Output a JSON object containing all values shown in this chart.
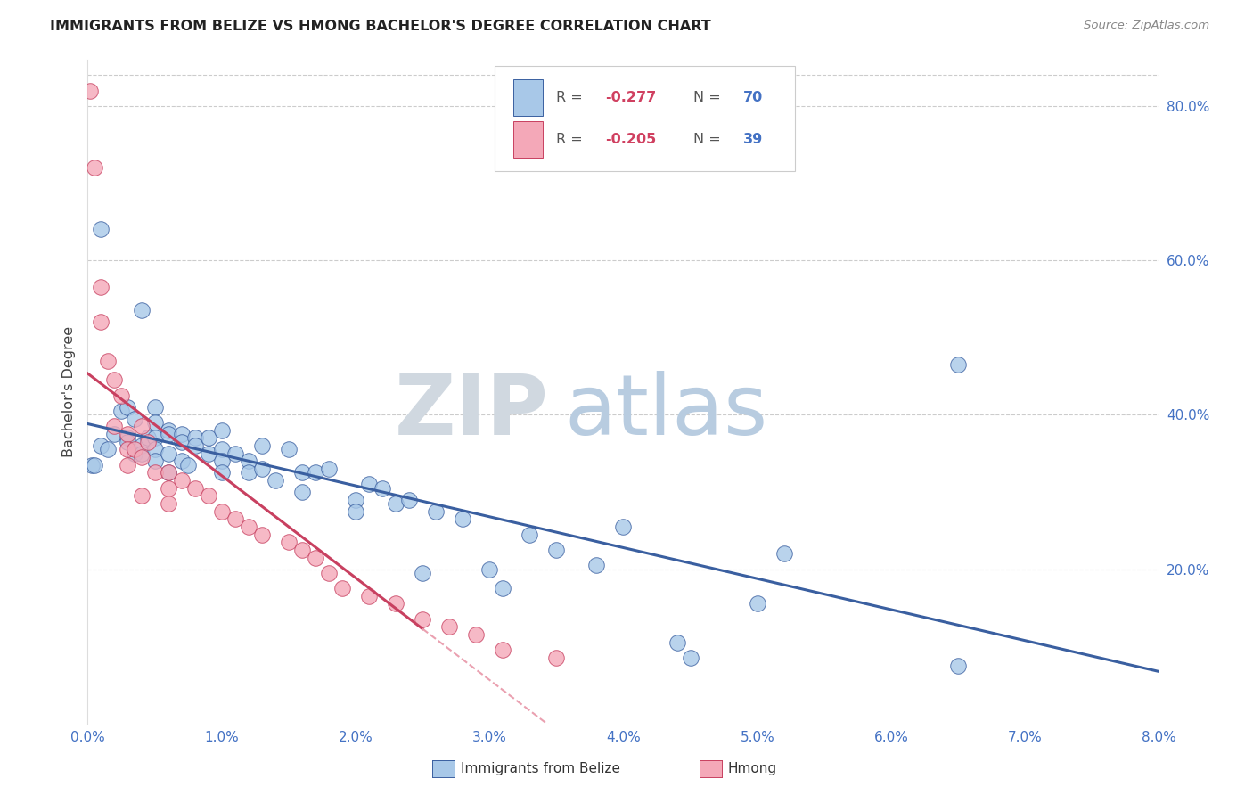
{
  "title": "IMMIGRANTS FROM BELIZE VS HMONG BACHELOR'S DEGREE CORRELATION CHART",
  "source": "Source: ZipAtlas.com",
  "ylabel": "Bachelor's Degree",
  "x_tick_labels": [
    "0.0%",
    "1.0%",
    "2.0%",
    "3.0%",
    "4.0%",
    "5.0%",
    "6.0%",
    "7.0%",
    "8.0%"
  ],
  "y_tick_labels_right": [
    "20.0%",
    "40.0%",
    "60.0%",
    "80.0%"
  ],
  "x_ticks": [
    0.0,
    0.01,
    0.02,
    0.03,
    0.04,
    0.05,
    0.06,
    0.07,
    0.08
  ],
  "y_ticks_right": [
    0.2,
    0.4,
    0.6,
    0.8
  ],
  "xlim": [
    0.0,
    0.08
  ],
  "ylim": [
    0.0,
    0.86
  ],
  "color_blue": "#A8C8E8",
  "color_pink": "#F4A8B8",
  "color_trendline_blue": "#3A5FA0",
  "color_trendline_pink": "#C84060",
  "color_trendline_pink_dashed": "#EAA0B0",
  "watermark_zip_color": "#D0D8E0",
  "watermark_atlas_color": "#B8CCE0",
  "belize_x": [
    0.0003,
    0.0005,
    0.001,
    0.001,
    0.0015,
    0.002,
    0.0025,
    0.003,
    0.003,
    0.003,
    0.0035,
    0.0035,
    0.004,
    0.004,
    0.004,
    0.0045,
    0.005,
    0.005,
    0.005,
    0.005,
    0.005,
    0.006,
    0.006,
    0.006,
    0.006,
    0.007,
    0.007,
    0.007,
    0.0075,
    0.008,
    0.008,
    0.009,
    0.009,
    0.01,
    0.01,
    0.01,
    0.01,
    0.011,
    0.012,
    0.012,
    0.013,
    0.013,
    0.014,
    0.015,
    0.016,
    0.016,
    0.017,
    0.018,
    0.02,
    0.02,
    0.021,
    0.022,
    0.023,
    0.024,
    0.025,
    0.026,
    0.028,
    0.03,
    0.031,
    0.033,
    0.035,
    0.038,
    0.04,
    0.044,
    0.045,
    0.05,
    0.052,
    0.065,
    0.065
  ],
  "belize_y": [
    0.335,
    0.335,
    0.64,
    0.36,
    0.355,
    0.375,
    0.405,
    0.41,
    0.37,
    0.365,
    0.395,
    0.35,
    0.36,
    0.35,
    0.535,
    0.37,
    0.41,
    0.39,
    0.37,
    0.355,
    0.34,
    0.38,
    0.375,
    0.35,
    0.325,
    0.375,
    0.365,
    0.34,
    0.335,
    0.37,
    0.36,
    0.37,
    0.35,
    0.38,
    0.355,
    0.34,
    0.325,
    0.35,
    0.34,
    0.325,
    0.36,
    0.33,
    0.315,
    0.355,
    0.325,
    0.3,
    0.325,
    0.33,
    0.29,
    0.275,
    0.31,
    0.305,
    0.285,
    0.29,
    0.195,
    0.275,
    0.265,
    0.2,
    0.175,
    0.245,
    0.225,
    0.205,
    0.255,
    0.105,
    0.085,
    0.155,
    0.22,
    0.465,
    0.075
  ],
  "hmong_x": [
    0.0002,
    0.0005,
    0.001,
    0.001,
    0.0015,
    0.002,
    0.002,
    0.0025,
    0.003,
    0.003,
    0.003,
    0.0035,
    0.004,
    0.004,
    0.004,
    0.0045,
    0.005,
    0.006,
    0.006,
    0.006,
    0.007,
    0.008,
    0.009,
    0.01,
    0.011,
    0.012,
    0.013,
    0.015,
    0.016,
    0.017,
    0.018,
    0.019,
    0.021,
    0.023,
    0.025,
    0.027,
    0.029,
    0.031,
    0.035
  ],
  "hmong_y": [
    0.82,
    0.72,
    0.565,
    0.52,
    0.47,
    0.445,
    0.385,
    0.425,
    0.375,
    0.355,
    0.335,
    0.355,
    0.385,
    0.345,
    0.295,
    0.365,
    0.325,
    0.325,
    0.305,
    0.285,
    0.315,
    0.305,
    0.295,
    0.275,
    0.265,
    0.255,
    0.245,
    0.235,
    0.225,
    0.215,
    0.195,
    0.175,
    0.165,
    0.155,
    0.135,
    0.125,
    0.115,
    0.095,
    0.085
  ]
}
